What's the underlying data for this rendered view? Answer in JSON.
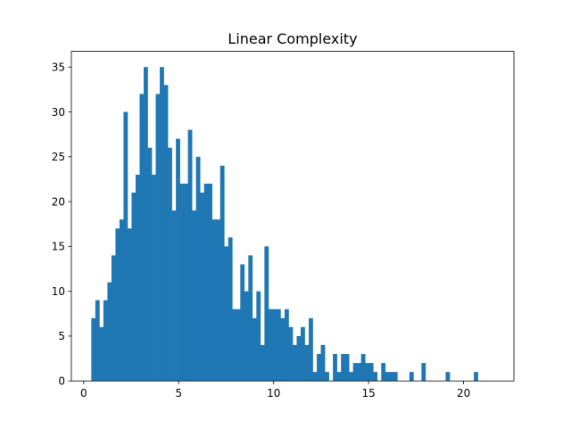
{
  "chart_data": {
    "type": "bar",
    "title": "Linear Complexity",
    "xlabel": "",
    "ylabel": "",
    "xlim": [
      -0.65,
      22.65
    ],
    "ylim": [
      0,
      36.75
    ],
    "xticks": [
      0,
      5,
      10,
      15,
      20
    ],
    "yticks": [
      0,
      5,
      10,
      15,
      20,
      25,
      30,
      35
    ],
    "bin_start": 0.4,
    "bin_width": 0.212,
    "counts": [
      7,
      9,
      6,
      9,
      11,
      14,
      17,
      18,
      30,
      17,
      21,
      23,
      32,
      35,
      26,
      23,
      32,
      35,
      33,
      26,
      19,
      27,
      22,
      22,
      28,
      19,
      25,
      21,
      22,
      22,
      18,
      18,
      24,
      15,
      16,
      8,
      8,
      13,
      10,
      14,
      7,
      10,
      4,
      15,
      8,
      8,
      8,
      7,
      8,
      6,
      4,
      5,
      6,
      4,
      7,
      1,
      3,
      4,
      1,
      0,
      3,
      1,
      3,
      3,
      1,
      2,
      2,
      3,
      2,
      2,
      1,
      0,
      2,
      1,
      1,
      1,
      0,
      0,
      0,
      1,
      0,
      0,
      2,
      0,
      0,
      0,
      0,
      0,
      1,
      0,
      0,
      0,
      0,
      0,
      0,
      1
    ],
    "bar_color": "#1f77b4",
    "grid": false
  }
}
